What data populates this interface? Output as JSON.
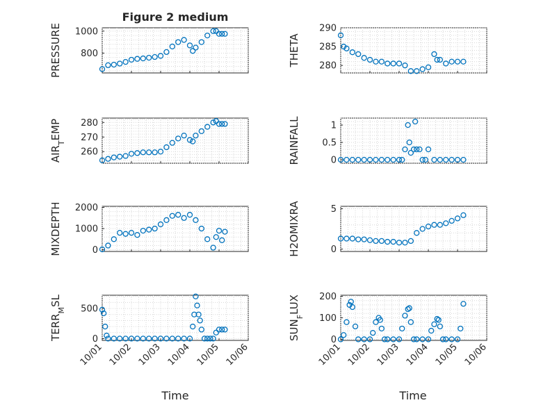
{
  "figure": {
    "title": "Figure 2 medium",
    "xlabel": "Time",
    "marker_color": "#0072BD"
  },
  "chart_data": [
    {
      "type": "scatter",
      "ylabel": "PRESSURE",
      "ylim": [
        620,
        1030
      ],
      "yticks": [
        800,
        1000
      ],
      "ytick_labels": [
        "800",
        "1000"
      ],
      "x": [
        1.0,
        1.2,
        1.4,
        1.6,
        1.8,
        2.0,
        2.2,
        2.4,
        2.6,
        2.8,
        3.0,
        3.2,
        3.4,
        3.6,
        3.8,
        4.0,
        4.1,
        4.2,
        4.4,
        4.6,
        4.8,
        4.9,
        5.0,
        5.1,
        5.2
      ],
      "y": [
        655,
        690,
        695,
        705,
        720,
        740,
        748,
        752,
        758,
        765,
        775,
        810,
        860,
        900,
        920,
        870,
        820,
        850,
        900,
        960,
        1000,
        1000,
        975,
        975,
        975
      ]
    },
    {
      "type": "scatter",
      "ylabel": "THETA",
      "ylim": [
        278,
        290
      ],
      "yticks": [
        280,
        285,
        290
      ],
      "ytick_labels": [
        "280",
        "285",
        "290"
      ],
      "x": [
        1.0,
        1.1,
        1.2,
        1.4,
        1.6,
        1.8,
        2.0,
        2.2,
        2.4,
        2.6,
        2.8,
        3.0,
        3.2,
        3.4,
        3.6,
        3.8,
        4.0,
        4.2,
        4.3,
        4.4,
        4.6,
        4.8,
        5.0,
        5.2
      ],
      "y": [
        288,
        285,
        284.5,
        283.5,
        283,
        282,
        281.5,
        281,
        281,
        280.5,
        280.5,
        280.5,
        280,
        278.5,
        278.5,
        279,
        279.5,
        283,
        281.5,
        281.5,
        280.5,
        281,
        281,
        281
      ]
    },
    {
      "type": "scatter",
      "ylabel": "AIR_TEMP",
      "ylim": [
        252,
        283
      ],
      "yticks": [
        260,
        270,
        280
      ],
      "ytick_labels": [
        "260",
        "270",
        "280"
      ],
      "x": [
        1.0,
        1.2,
        1.4,
        1.6,
        1.8,
        2.0,
        2.2,
        2.4,
        2.6,
        2.8,
        3.0,
        3.2,
        3.4,
        3.6,
        3.8,
        4.0,
        4.1,
        4.2,
        4.4,
        4.6,
        4.8,
        4.9,
        5.0,
        5.1,
        5.2
      ],
      "y": [
        254,
        255,
        256,
        256.5,
        257,
        258.5,
        259,
        259.5,
        259.5,
        259.5,
        260,
        263,
        266,
        269,
        271,
        268,
        267,
        271,
        274,
        277,
        280,
        281,
        279,
        279,
        279
      ]
    },
    {
      "type": "scatter",
      "ylabel": "RAINFALL",
      "ylim": [
        -0.1,
        1.2
      ],
      "yticks": [
        0,
        0.5,
        1
      ],
      "ytick_labels": [
        "0",
        "0.5",
        "1"
      ],
      "x": [
        1.0,
        1.2,
        1.4,
        1.6,
        1.8,
        2.0,
        2.2,
        2.4,
        2.6,
        2.8,
        3.0,
        3.1,
        3.2,
        3.3,
        3.35,
        3.4,
        3.5,
        3.55,
        3.6,
        3.7,
        3.8,
        3.9,
        4.0,
        4.2,
        4.4,
        4.6,
        4.8,
        5.0,
        5.2
      ],
      "y": [
        0,
        0,
        0,
        0,
        0,
        0,
        0,
        0,
        0,
        0,
        0,
        0,
        0.3,
        1.0,
        0.5,
        0.2,
        0.3,
        1.1,
        0.3,
        0.3,
        0,
        0,
        0.3,
        0,
        0,
        0,
        0,
        0,
        0
      ]
    },
    {
      "type": "scatter",
      "ylabel": "MIXDEPTH",
      "ylim": [
        -80,
        2050
      ],
      "yticks": [
        0,
        1000,
        2000
      ],
      "ytick_labels": [
        "0",
        "1000",
        "2000"
      ],
      "x": [
        1.0,
        1.2,
        1.4,
        1.6,
        1.8,
        2.0,
        2.2,
        2.4,
        2.6,
        2.8,
        3.0,
        3.2,
        3.4,
        3.6,
        3.8,
        4.0,
        4.2,
        4.4,
        4.6,
        4.8,
        4.9,
        5.0,
        5.1,
        5.2
      ],
      "y": [
        20,
        200,
        500,
        800,
        750,
        800,
        700,
        900,
        950,
        1000,
        1200,
        1400,
        1600,
        1650,
        1500,
        1650,
        1400,
        1000,
        500,
        100,
        600,
        900,
        450,
        850
      ]
    },
    {
      "type": "scatter",
      "ylabel": "H2OMIXRA",
      "ylim": [
        -0.3,
        5.3
      ],
      "yticks": [
        0,
        5
      ],
      "ytick_labels": [
        "0",
        "5"
      ],
      "x": [
        1.0,
        1.2,
        1.4,
        1.6,
        1.8,
        2.0,
        2.2,
        2.4,
        2.6,
        2.8,
        3.0,
        3.2,
        3.4,
        3.6,
        3.8,
        4.0,
        4.2,
        4.4,
        4.6,
        4.8,
        5.0,
        5.2
      ],
      "y": [
        1.3,
        1.3,
        1.3,
        1.2,
        1.2,
        1.1,
        1.0,
        1.0,
        0.9,
        0.9,
        0.8,
        0.8,
        1.0,
        2.0,
        2.5,
        2.8,
        3.0,
        3.0,
        3.2,
        3.5,
        3.8,
        4.2
      ]
    },
    {
      "type": "scatter",
      "ylabel": "TERR_MSL",
      "ylim": [
        -30,
        720
      ],
      "yticks": [
        0,
        500
      ],
      "ytick_labels": [
        "0",
        "500"
      ],
      "x": [
        1.0,
        1.05,
        1.1,
        1.15,
        1.2,
        1.4,
        1.6,
        1.8,
        2.0,
        2.2,
        2.4,
        2.6,
        2.8,
        3.0,
        3.2,
        3.4,
        3.6,
        3.8,
        4.0,
        4.1,
        4.15,
        4.2,
        4.25,
        4.3,
        4.35,
        4.4,
        4.5,
        4.6,
        4.7,
        4.8,
        4.9,
        5.0,
        5.1,
        5.2
      ],
      "y": [
        480,
        420,
        200,
        50,
        0,
        0,
        0,
        0,
        0,
        0,
        0,
        0,
        0,
        0,
        0,
        0,
        0,
        0,
        0,
        200,
        400,
        700,
        550,
        400,
        300,
        150,
        0,
        0,
        0,
        0,
        100,
        150,
        150,
        150
      ]
    },
    {
      "type": "scatter",
      "ylabel": "SUN_FLUX",
      "ylim": [
        -5,
        205
      ],
      "yticks": [
        0,
        100,
        200
      ],
      "ytick_labels": [
        "0",
        "100",
        "200"
      ],
      "x": [
        1.0,
        1.1,
        1.2,
        1.3,
        1.35,
        1.4,
        1.5,
        1.6,
        1.8,
        2.0,
        2.1,
        2.2,
        2.3,
        2.35,
        2.4,
        2.5,
        2.6,
        2.8,
        3.0,
        3.1,
        3.2,
        3.3,
        3.35,
        3.4,
        3.5,
        3.6,
        3.8,
        4.0,
        4.1,
        4.2,
        4.3,
        4.35,
        4.4,
        4.5,
        4.6,
        4.8,
        5.0,
        5.1,
        5.2
      ],
      "y": [
        0,
        20,
        80,
        160,
        175,
        150,
        60,
        0,
        0,
        0,
        30,
        80,
        100,
        90,
        50,
        0,
        0,
        0,
        0,
        50,
        110,
        140,
        145,
        80,
        0,
        0,
        0,
        0,
        40,
        70,
        95,
        90,
        60,
        0,
        0,
        0,
        0,
        50,
        165
      ]
    }
  ],
  "x_axis": {
    "range": [
      1,
      6
    ],
    "ticks": [
      1,
      2,
      3,
      4,
      5,
      6
    ],
    "tick_labels": [
      "10/01",
      "10/02",
      "10/03",
      "10/04",
      "10/05",
      "10/06"
    ]
  }
}
